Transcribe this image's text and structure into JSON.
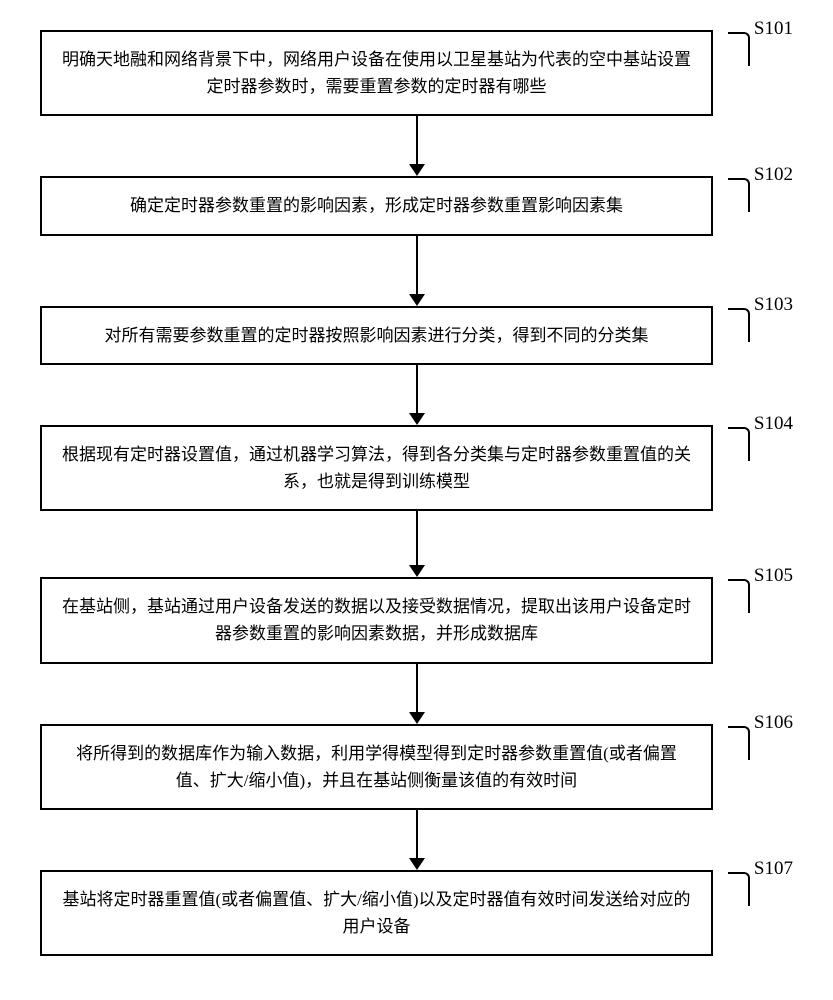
{
  "flowchart": {
    "type": "flowchart",
    "direction": "vertical",
    "box_border_color": "#000000",
    "box_border_width": 2,
    "box_background": "#ffffff",
    "text_color": "#000000",
    "font_size": 17,
    "label_font_size": 19,
    "arrow_color": "#000000",
    "arrow_line_width": 2,
    "arrow_head_w": 16,
    "arrow_head_h": 12,
    "bracket_width": 22,
    "bracket_height": 34,
    "bracket_radius": 6,
    "page_background": "#ffffff",
    "steps": [
      {
        "id": "S101",
        "text": "明确天地融和网络背景下中，网络用户设备在使用以卫星基站为代表的空中基站设置定时器参数时，需要重置参数的定时器有哪些",
        "arrow_after_height": 48
      },
      {
        "id": "S102",
        "text": "确定定时器参数重置的影响因素，形成定时器参数重置影响因素集",
        "arrow_after_height": 58
      },
      {
        "id": "S103",
        "text": "对所有需要参数重置的定时器按照影响因素进行分类，得到不同的分类集",
        "arrow_after_height": 48
      },
      {
        "id": "S104",
        "text": "根据现有定时器设置值，通过机器学习算法，得到各分类集与定时器参数重置值的关系，也就是得到训练模型",
        "arrow_after_height": 54
      },
      {
        "id": "S105",
        "text": "在基站侧，基站通过用户设备发送的数据以及接受数据情况，提取出该用户设备定时器参数重置的影响因素数据，并形成数据库",
        "arrow_after_height": 48
      },
      {
        "id": "S106",
        "text": "将所得到的数据库作为输入数据，利用学得模型得到定时器参数重置值(或者偏置值、扩大/缩小值)，并且在基站侧衡量该值的有效时间",
        "arrow_after_height": 48
      },
      {
        "id": "S107",
        "text": "基站将定时器重置值(或者偏置值、扩大/缩小值)以及定时器值有效时间发送给对应的用户设备",
        "arrow_after_height": 0
      }
    ]
  }
}
